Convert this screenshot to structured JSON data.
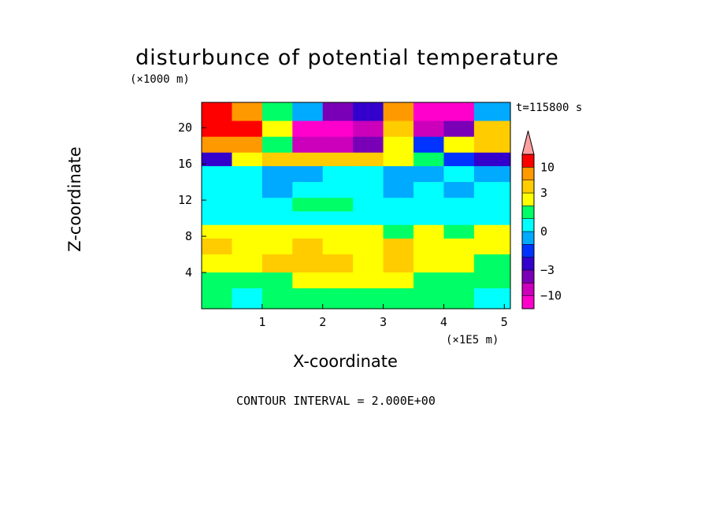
{
  "figure": {
    "title": "disturbunce of potential temperature",
    "y_unit_label": "(×1000 m)",
    "x_unit_label": "(×1E5 m)",
    "time_label": "t=115800 s",
    "contour_interval_label": "CONTOUR INTERVAL = 2.000E+00"
  },
  "chart_data": {
    "type": "heatmap",
    "title": "disturbunce of potential temperature",
    "xlabel": "X-coordinate",
    "ylabel": "Z-coordinate",
    "x_ticks": [
      1,
      2,
      3,
      4,
      5
    ],
    "y_ticks": [
      4,
      8,
      12,
      16,
      20
    ],
    "xlim": [
      0,
      5.1
    ],
    "ylim": [
      0,
      22.8
    ],
    "colorbar": {
      "tick_labels": [
        "10",
        "3",
        "0",
        "-3",
        "-10"
      ],
      "tick_values": [
        10,
        3,
        0,
        -3,
        -10
      ],
      "range": [
        -20,
        20
      ],
      "levels": [
        -20,
        -10,
        -5,
        -3,
        -2,
        -1,
        0,
        1,
        2,
        3,
        5,
        10,
        20
      ],
      "colors": [
        "#ff00cc",
        "#cc00bb",
        "#7a00b8",
        "#3300cc",
        "#0033ff",
        "#00aaff",
        "#00ffff",
        "#00ff66",
        "#ffff00",
        "#ffcc00",
        "#ff9900",
        "#ff0000",
        "#ff9f9f"
      ],
      "extend": "max"
    },
    "x_grid": [
      0.25,
      0.75,
      1.25,
      1.75,
      2.25,
      2.75,
      3.25,
      3.75,
      4.25,
      4.75
    ],
    "z_grid": [
      21.5,
      20,
      18,
      16.5,
      15,
      13,
      11.5,
      10,
      8.5,
      7,
      5,
      3,
      1.5
    ],
    "values": [
      [
        15,
        6,
        1,
        -1,
        -4,
        -3,
        8,
        -12,
        -12,
        -1
      ],
      [
        15,
        10,
        2,
        -13,
        -13,
        -8,
        4,
        -8,
        -5,
        3
      ],
      [
        8,
        5,
        1,
        -8,
        -10,
        -4,
        2,
        -2,
        2,
        4
      ],
      [
        -3,
        2,
        3,
        4,
        3,
        4,
        2,
        1,
        -2,
        -3
      ],
      [
        0,
        0,
        -0.5,
        -0.5,
        0.5,
        0,
        -0.5,
        -0.5,
        0,
        -0.5
      ],
      [
        0.5,
        0.5,
        -0.5,
        0.5,
        0.5,
        0,
        -0.5,
        0.5,
        -0.5,
        0
      ],
      [
        0.5,
        0.5,
        0.5,
        1,
        1.5,
        0.5,
        0.5,
        0.5,
        0.5,
        0.5
      ],
      [
        0.5,
        0.5,
        0.5,
        0.5,
        0.5,
        0.5,
        0.5,
        0.5,
        0.5,
        0.5
      ],
      [
        2,
        2,
        2,
        2,
        2,
        2,
        1.5,
        2,
        1.5,
        2
      ],
      [
        3,
        2,
        2.5,
        3,
        2.5,
        2.5,
        3,
        2,
        2.5,
        2
      ],
      [
        2.5,
        2.5,
        3,
        4,
        3,
        2.5,
        3,
        2,
        2,
        1.5
      ],
      [
        1.5,
        1.5,
        1.5,
        2,
        2.5,
        2,
        2,
        1.5,
        1.5,
        1.5
      ],
      [
        1.5,
        0.5,
        1.5,
        1.5,
        1.5,
        1.5,
        1.5,
        1.5,
        1.5,
        0.5
      ]
    ]
  }
}
